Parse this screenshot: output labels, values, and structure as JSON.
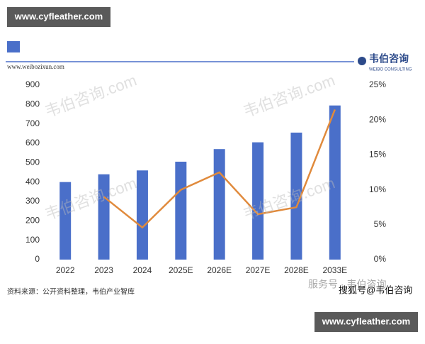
{
  "banner_top": "www.cyfleather.com",
  "banner_bottom": "www.cyfleather.com",
  "chart_data": {
    "type": "bar",
    "site": "www.weibozixun.com",
    "brand": "韦伯咨询",
    "brand_en": "WEIBO CONSULTING",
    "watermark": "韦伯咨询.com",
    "source": "资料来源：公开资料整理，韦伯产业智库",
    "service": "服务号 · 韦伯咨询",
    "credit": "搜狐号@韦伯咨询",
    "categories": [
      "2022",
      "2023",
      "2024",
      "2025E",
      "2026E",
      "2027E",
      "2028E",
      "2033E"
    ],
    "series": [
      {
        "type": "bar",
        "color": "#4a6fc9",
        "values": [
          400,
          440,
          460,
          505,
          570,
          605,
          655,
          795
        ]
      },
      {
        "type": "line",
        "axis": "y2",
        "color": "#e08a3c",
        "values": [
          null,
          9,
          4.6,
          10,
          12.5,
          6.5,
          7.5,
          21.5
        ]
      }
    ],
    "ylim": [
      0,
      900
    ],
    "yticks": [
      0,
      100,
      200,
      300,
      400,
      500,
      600,
      700,
      800,
      900
    ],
    "y2lim": [
      0,
      25
    ],
    "y2ticks": [
      {
        "value": 0,
        "label": "0%"
      },
      {
        "value": 5,
        "label": "5%"
      },
      {
        "value": 10,
        "label": "10%"
      },
      {
        "value": 15,
        "label": "15%"
      },
      {
        "value": 20,
        "label": "20%"
      },
      {
        "value": 25,
        "label": "25%"
      }
    ]
  }
}
